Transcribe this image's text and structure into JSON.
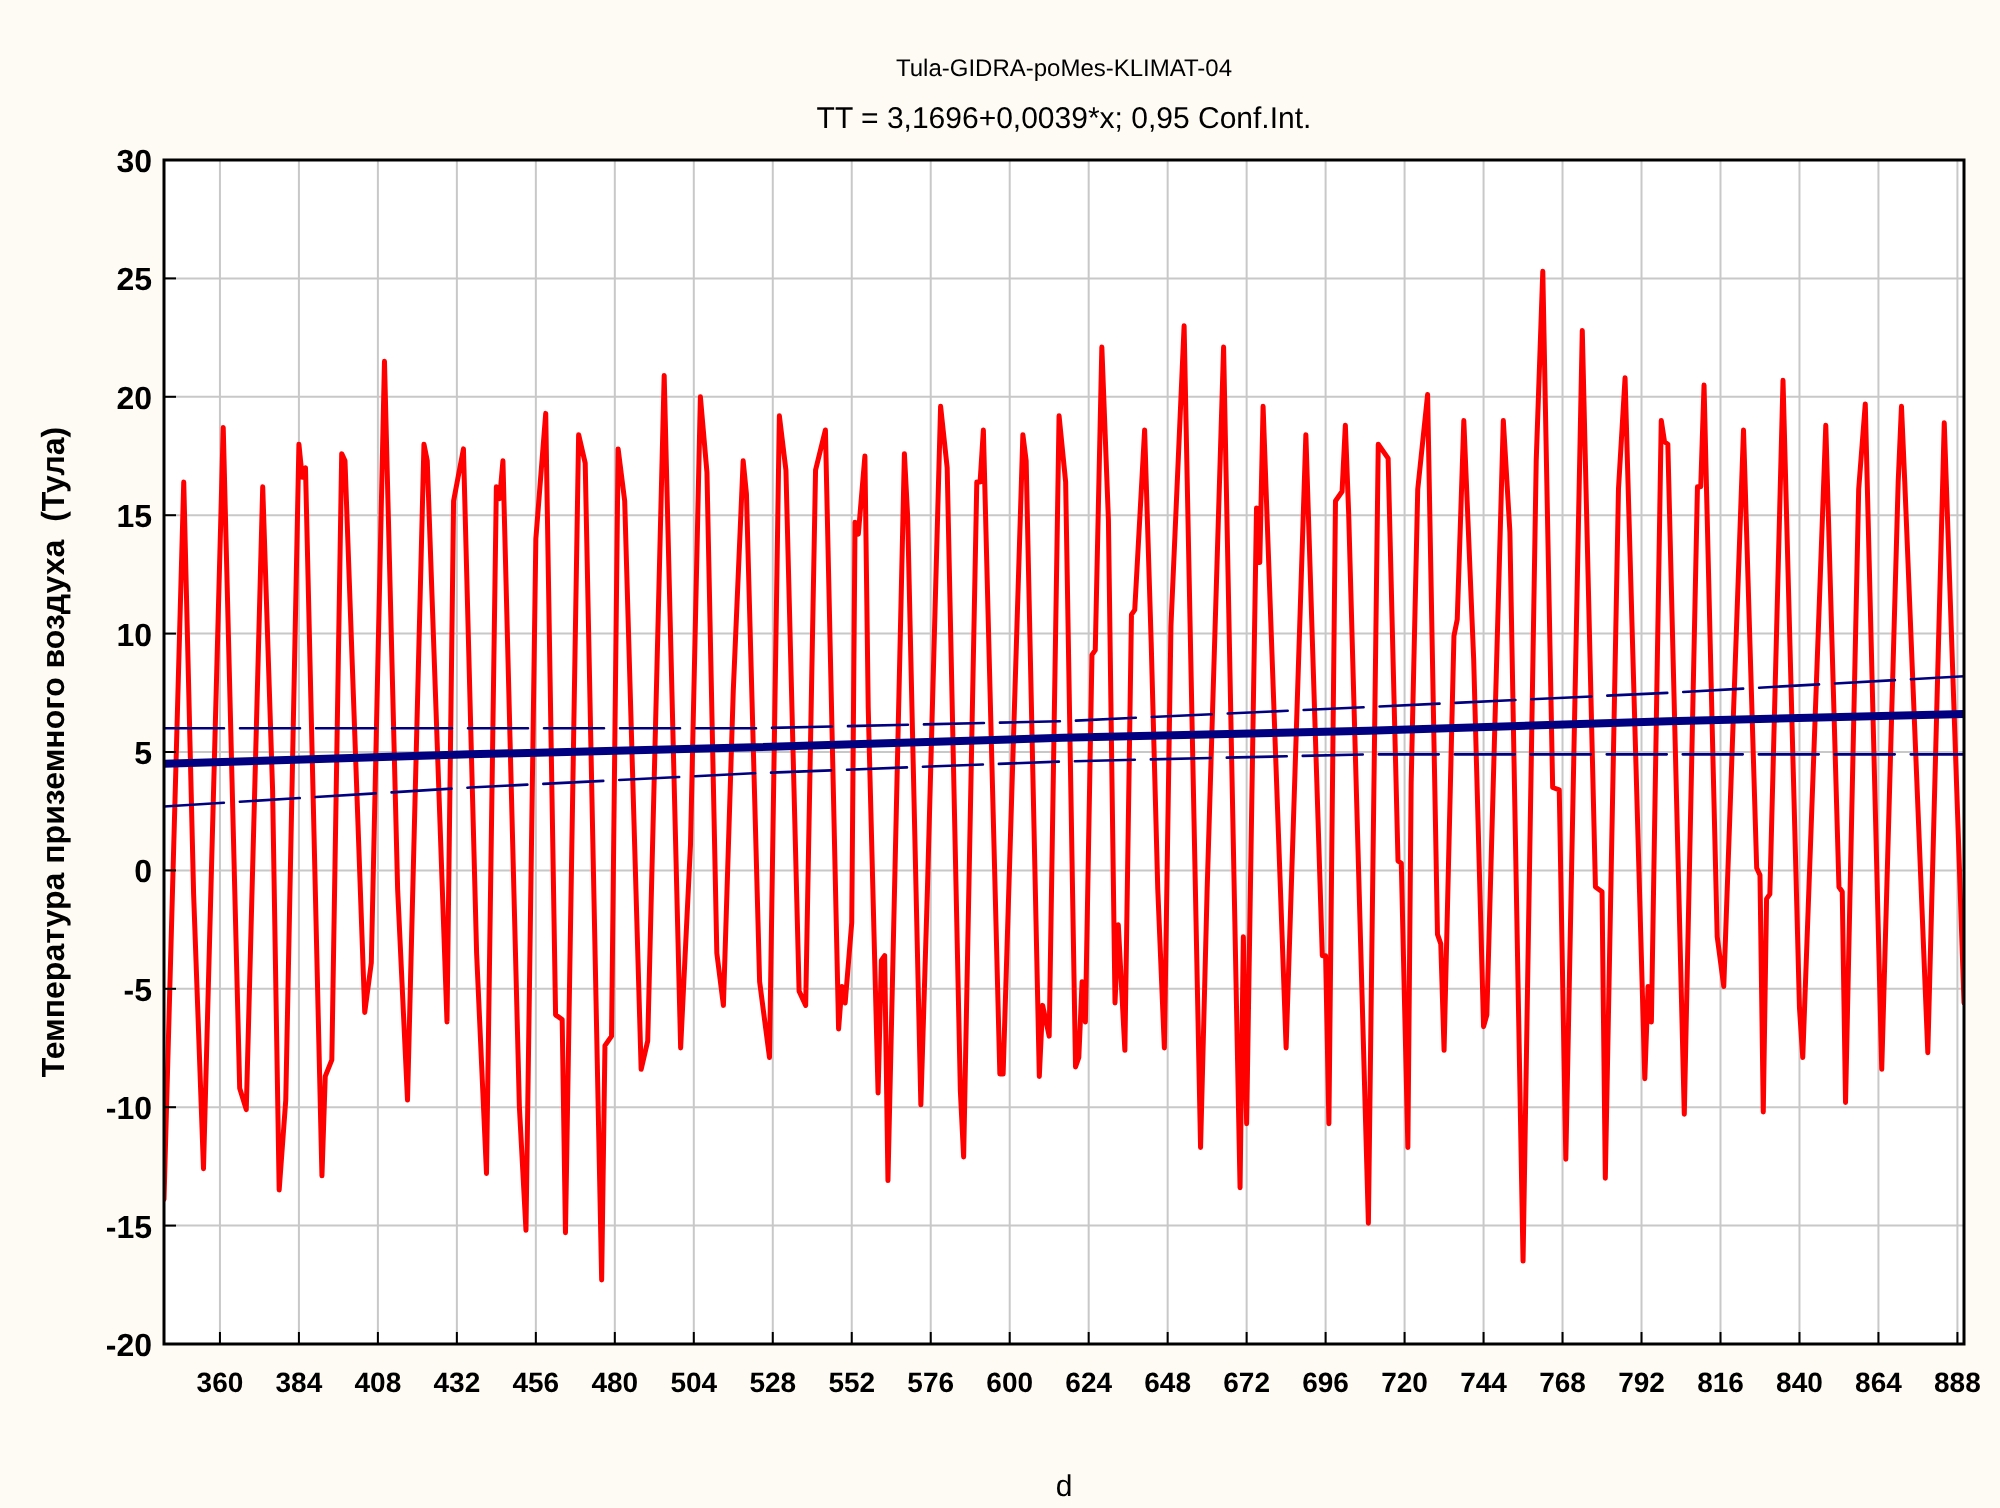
{
  "chart_data": {
    "type": "line",
    "title": "Tula-GIDRA-poMes-KLIMAT-04",
    "subtitle": "TT = 3,1696+0,0039*x; 0,95 Conf.Int.",
    "xlabel": "d",
    "ylabel": "Температура приземного воздуха  (Тула)",
    "xlim": [
      343,
      890
    ],
    "ylim": [
      -20,
      30
    ],
    "xticks": [
      360,
      384,
      408,
      432,
      456,
      480,
      504,
      528,
      552,
      576,
      600,
      624,
      648,
      672,
      696,
      720,
      744,
      768,
      792,
      816,
      840,
      864,
      888
    ],
    "yticks": [
      -20,
      -15,
      -10,
      -5,
      0,
      5,
      10,
      15,
      20,
      25,
      30
    ],
    "grid": true,
    "marker": "none",
    "series": [
      {
        "color": "#ff0000",
        "x": [
          343,
          349,
          352,
          355,
          361,
          366,
          368,
          373,
          376,
          378,
          380,
          384,
          385,
          386,
          391,
          392,
          394,
          397,
          398,
          404,
          406,
          410,
          414,
          417,
          422,
          423,
          429,
          431,
          434,
          438,
          441,
          444,
          445,
          446,
          451,
          453,
          456,
          459,
          462,
          464,
          465,
          469,
          471,
          476,
          477,
          479,
          481,
          483,
          488,
          490,
          495,
          500,
          503,
          506,
          508,
          511,
          513,
          516,
          519,
          520,
          524,
          527,
          530,
          532,
          536,
          538,
          541,
          544,
          548,
          549,
          550,
          552,
          553,
          554,
          556,
          557,
          560,
          561,
          562,
          563,
          568,
          569,
          573,
          575,
          579,
          581,
          585,
          586,
          590,
          591,
          592,
          597,
          598,
          604,
          605,
          609,
          610,
          612,
          615,
          617,
          620,
          621,
          622,
          623,
          625,
          626,
          628,
          630,
          632,
          633,
          635,
          637,
          638,
          641,
          643,
          645,
          647,
          649,
          653,
          658,
          660,
          665,
          670,
          671,
          672,
          675,
          676,
          677,
          684,
          690,
          695,
          696,
          697,
          699,
          701,
          702,
          703,
          709,
          712,
          715,
          718,
          719,
          721,
          722,
          724,
          727,
          730,
          731,
          732,
          735,
          736,
          738,
          741,
          744,
          745,
          750,
          752,
          756,
          760,
          762,
          765,
          767,
          769,
          774,
          778,
          780,
          781,
          785,
          787,
          793,
          794,
          795,
          798,
          799,
          800,
          805,
          809,
          810,
          811,
          815,
          817,
          823,
          827,
          828,
          829,
          830,
          831,
          835,
          840,
          841,
          848,
          852,
          853,
          854,
          858,
          860,
          865,
          870,
          871,
          872,
          879,
          884,
          890
        ],
        "values": [
          -13.9,
          16.4,
          -1.0,
          -12.6,
          18.7,
          -9.2,
          -10.1,
          16.2,
          3.4,
          -13.5,
          -9.7,
          18.0,
          16.6,
          17.0,
          -12.9,
          -8.7,
          -8.0,
          17.6,
          17.3,
          -6.0,
          -3.9,
          21.5,
          -0.8,
          -9.7,
          18.0,
          17.3,
          -6.4,
          15.6,
          17.8,
          -3.5,
          -12.8,
          16.2,
          15.7,
          17.3,
          -10.0,
          -15.2,
          14.0,
          19.3,
          -6.1,
          -6.3,
          -15.3,
          18.4,
          17.2,
          -17.3,
          -7.4,
          -7.0,
          17.8,
          15.6,
          -8.4,
          -7.2,
          20.9,
          -7.5,
          1.1,
          20.0,
          16.8,
          -3.5,
          -5.7,
          7.6,
          17.3,
          15.9,
          -4.7,
          -7.9,
          19.2,
          16.9,
          -5.1,
          -5.7,
          16.9,
          18.6,
          -6.7,
          -4.9,
          -5.6,
          -2.2,
          14.7,
          14.2,
          17.5,
          6.9,
          -9.4,
          -3.8,
          -3.6,
          -13.1,
          17.6,
          14.9,
          -9.9,
          -0.8,
          19.6,
          17.0,
          -9.3,
          -12.1,
          16.4,
          16.4,
          18.6,
          -8.6,
          -8.6,
          18.4,
          17.3,
          -8.7,
          -5.7,
          -7.0,
          19.2,
          16.4,
          -8.3,
          -7.9,
          -4.7,
          -6.4,
          9.1,
          9.3,
          22.1,
          14.8,
          -5.6,
          -2.3,
          -7.6,
          10.8,
          11.0,
          18.6,
          9.6,
          -0.8,
          -7.5,
          10.3,
          23.0,
          -11.7,
          -0.8,
          22.1,
          -13.4,
          -2.8,
          -10.7,
          15.3,
          13.0,
          19.6,
          -7.5,
          18.4,
          -3.6,
          -3.6,
          -10.7,
          15.6,
          16.0,
          18.8,
          15.1,
          -14.9,
          18.0,
          17.4,
          0.4,
          0.3,
          -11.7,
          3.7,
          16.1,
          20.1,
          -2.7,
          -3.1,
          -7.6,
          9.9,
          10.6,
          19.0,
          8.9,
          -6.6,
          -6.1,
          19.0,
          14.3,
          -16.5,
          17.3,
          25.3,
          3.5,
          3.4,
          -12.2,
          22.8,
          -0.7,
          -0.9,
          -13.0,
          16.1,
          20.8,
          -8.8,
          -4.9,
          -6.4,
          19.0,
          18.1,
          18.0,
          -10.3,
          16.2,
          16.2,
          20.5,
          -2.8,
          -4.9,
          18.6,
          0.1,
          -0.2,
          -10.2,
          -1.2,
          -1.0,
          20.7,
          -5.8,
          -7.9,
          18.8,
          -0.7,
          -0.9,
          -9.8,
          16.1,
          19.7,
          -8.4,
          16.4,
          19.6,
          16.4,
          -7.7,
          18.9,
          -5.6
        ]
      },
      {
        "color": "#000080",
        "x": [
          343,
          436,
          522,
          616,
          709,
          800,
          890
        ],
        "values": [
          4.5,
          4.9,
          5.2,
          5.6,
          5.9,
          6.3,
          6.6
        ]
      },
      {
        "color": "#000080",
        "line_style": "dashed",
        "x": [
          343,
          436,
          522,
          616,
          709,
          800,
          890
        ],
        "values": [
          6.0,
          6.0,
          6.0,
          6.3,
          6.9,
          7.5,
          8.2
        ]
      },
      {
        "color": "#000080",
        "line_style": "dashed",
        "x": [
          343,
          436,
          522,
          616,
          709,
          800,
          890
        ],
        "values": [
          2.7,
          3.5,
          4.1,
          4.6,
          4.9,
          4.9,
          4.9
        ]
      }
    ]
  }
}
